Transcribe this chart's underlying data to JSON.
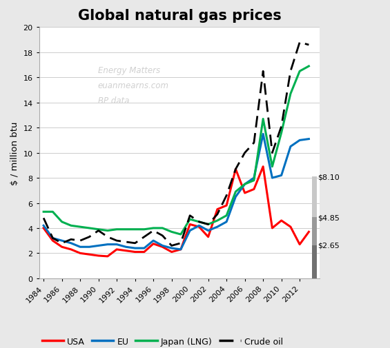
{
  "title": "Global natural gas prices",
  "ylabel": "$ / million btu",
  "watermark_lines": [
    "Energy Matters",
    "euanmearns.com",
    "BP data"
  ],
  "years": [
    1984,
    1985,
    1986,
    1987,
    1988,
    1989,
    1990,
    1991,
    1992,
    1993,
    1994,
    1995,
    1996,
    1997,
    1998,
    1999,
    2000,
    2001,
    2002,
    2003,
    2004,
    2005,
    2006,
    2007,
    2008,
    2009,
    2010,
    2011,
    2012,
    2013
  ],
  "usa": [
    4.0,
    3.0,
    2.5,
    2.3,
    2.0,
    1.9,
    1.8,
    1.75,
    2.3,
    2.2,
    2.1,
    2.1,
    2.75,
    2.5,
    2.1,
    2.3,
    4.3,
    4.1,
    3.3,
    5.5,
    5.8,
    8.7,
    6.8,
    7.1,
    8.9,
    4.0,
    4.6,
    4.1,
    2.7,
    3.7
  ],
  "eu": [
    4.2,
    3.2,
    3.0,
    2.8,
    2.5,
    2.5,
    2.6,
    2.7,
    2.7,
    2.5,
    2.4,
    2.4,
    3.0,
    2.6,
    2.4,
    2.3,
    3.8,
    4.2,
    3.8,
    4.1,
    4.5,
    6.5,
    7.5,
    8.0,
    11.5,
    8.0,
    8.2,
    10.5,
    11.0,
    11.1
  ],
  "japan": [
    5.3,
    5.3,
    4.5,
    4.2,
    4.1,
    4.0,
    3.9,
    3.8,
    3.9,
    3.9,
    3.9,
    3.9,
    4.0,
    4.0,
    3.7,
    3.5,
    4.7,
    4.5,
    4.3,
    4.6,
    5.0,
    6.9,
    7.5,
    7.8,
    12.7,
    8.9,
    11.6,
    14.7,
    16.5,
    16.9
  ],
  "crude": [
    4.8,
    3.2,
    2.8,
    3.1,
    3.0,
    3.3,
    3.8,
    3.3,
    3.0,
    2.9,
    2.8,
    3.3,
    3.8,
    3.4,
    2.6,
    2.8,
    5.0,
    4.5,
    4.3,
    5.1,
    6.6,
    8.7,
    10.0,
    10.8,
    16.5,
    10.0,
    12.1,
    16.5,
    18.8,
    18.6
  ],
  "usa_color": "#FF0000",
  "eu_color": "#0070C0",
  "japan_color": "#00B050",
  "crude_color": "#000000",
  "ylim": [
    0,
    20
  ],
  "yticks": [
    0,
    2,
    4,
    6,
    8,
    10,
    12,
    14,
    16,
    18,
    20
  ],
  "xlim": [
    1983.5,
    2014.2
  ],
  "xtick_years": [
    1984,
    1986,
    1988,
    1990,
    1992,
    1994,
    1996,
    1998,
    2000,
    2002,
    2004,
    2006,
    2008,
    2010,
    2012
  ],
  "bar_values": [
    2.65,
    4.85,
    8.1
  ],
  "bg_color": "#e8e8e8",
  "plot_bg_color": "#ffffff"
}
